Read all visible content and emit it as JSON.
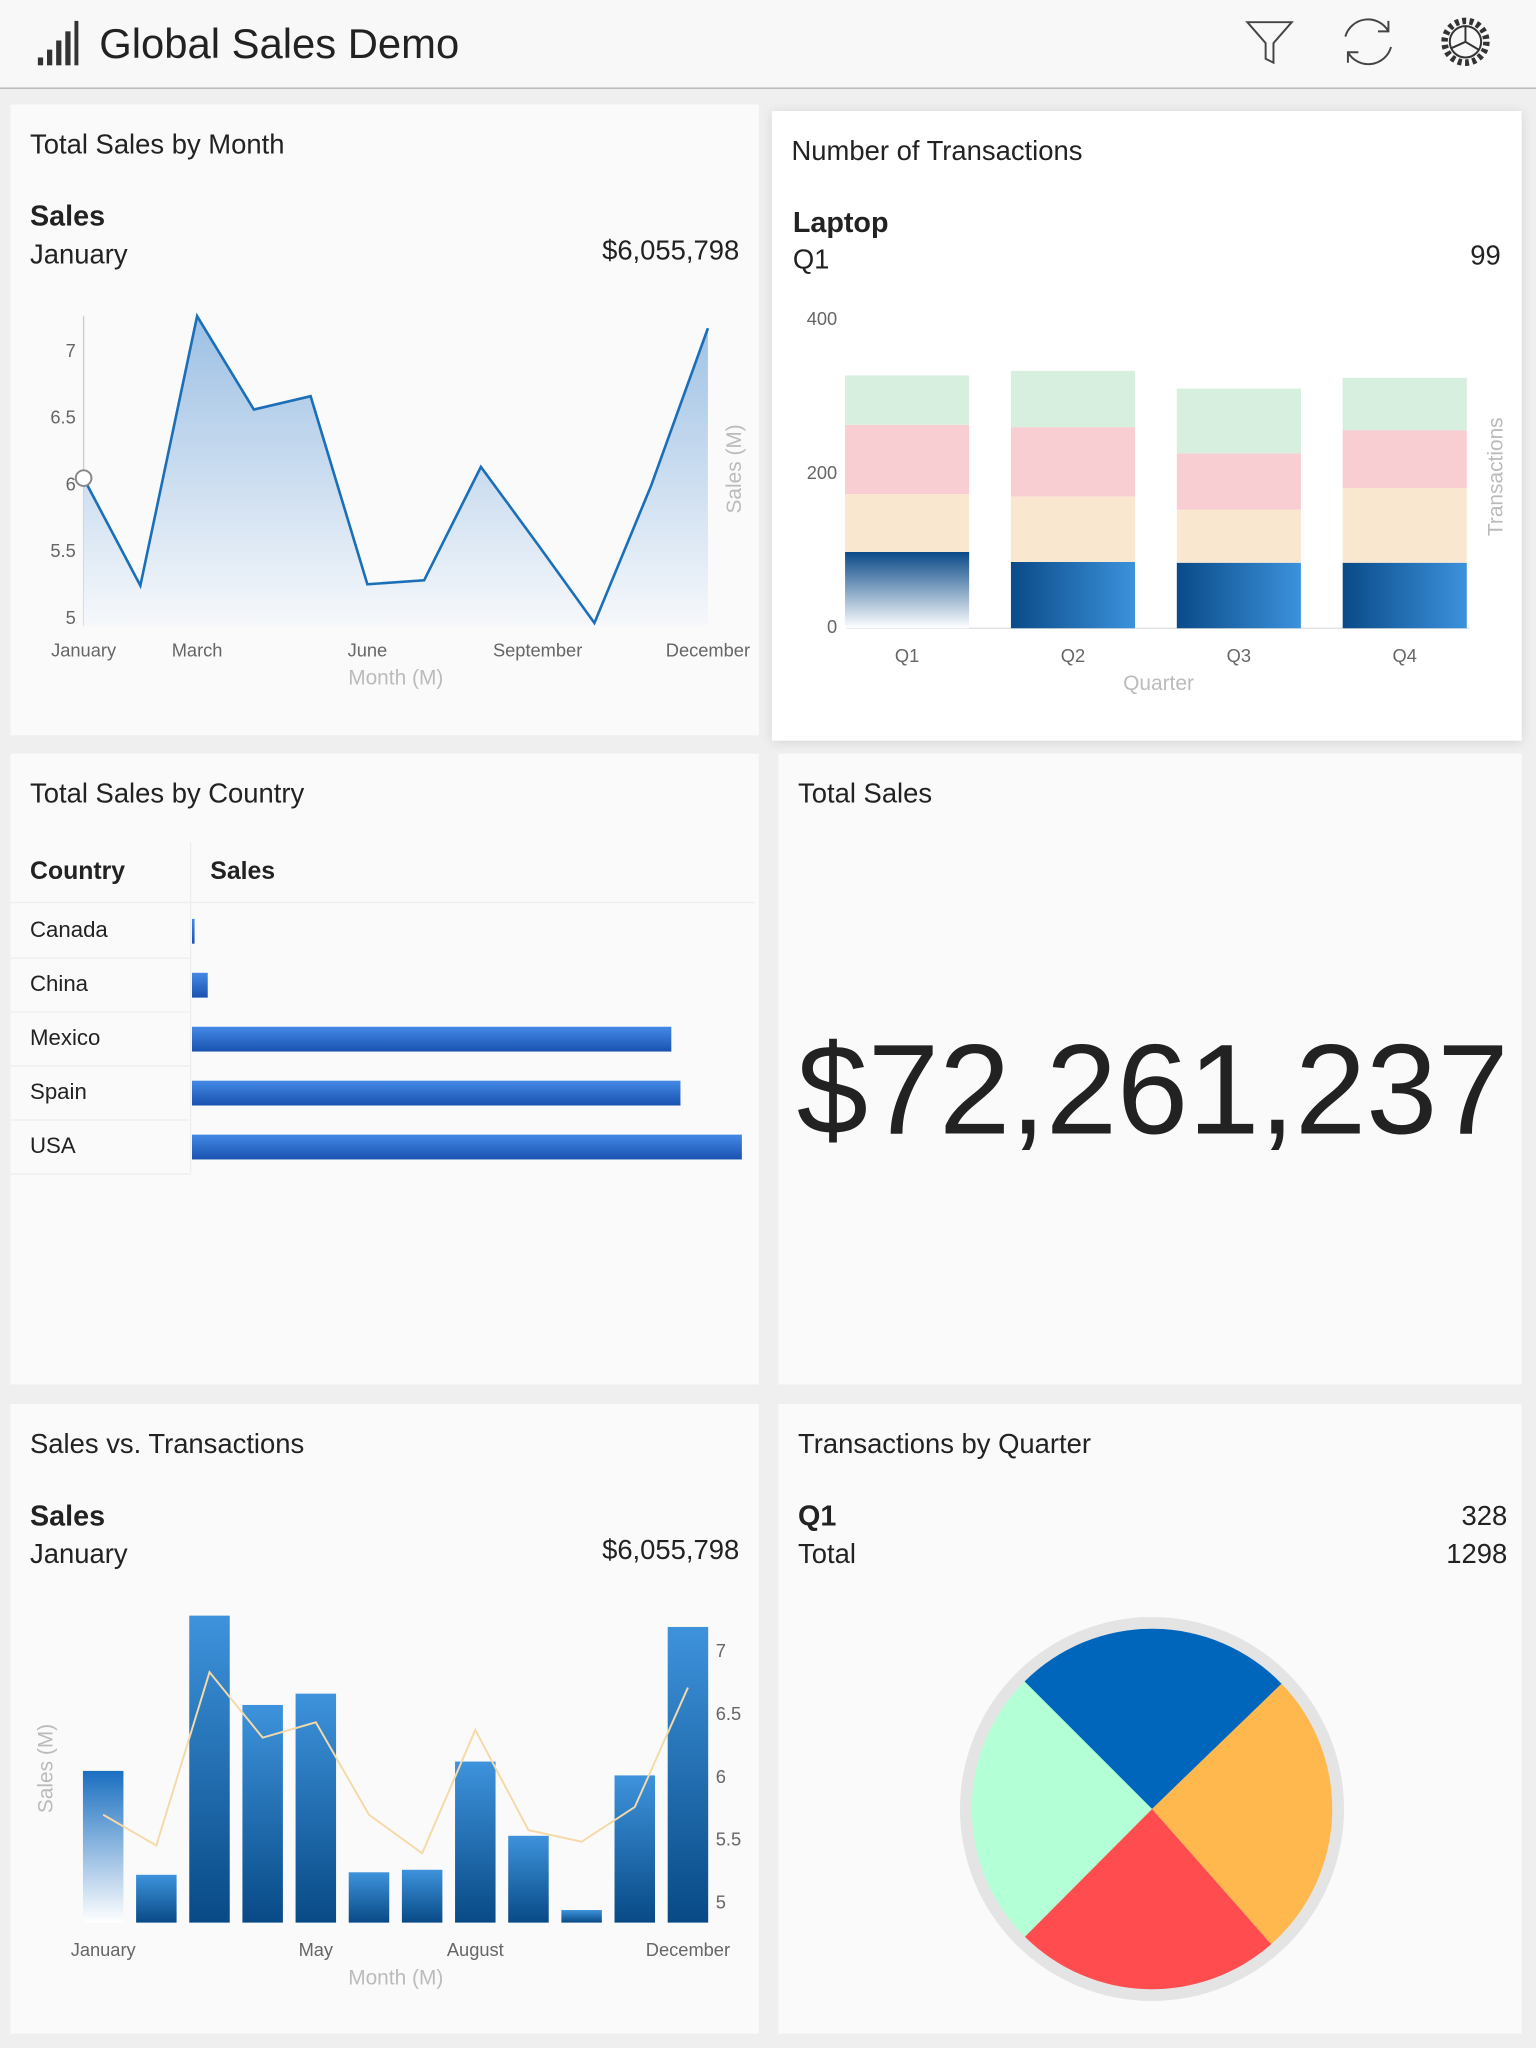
{
  "header": {
    "title": "Global Sales Demo"
  },
  "chart_data": [
    {
      "type": "line",
      "title": "Total Sales by Month",
      "xlabel": "Month (M)",
      "ylabel": "Sales (M)",
      "categories": [
        "January",
        null,
        "March",
        null,
        null,
        "June",
        null,
        null,
        "September",
        null,
        null,
        "December"
      ],
      "series": [
        {
          "name": "Sales",
          "color": "#1a6fb8",
          "values": [
            6.055798,
            5.25,
            7.27,
            6.57,
            6.67,
            5.26,
            5.29,
            6.14,
            5.56,
            4.97,
            6.0,
            7.18
          ],
          "value_labels": [
            "$6,055,798",
            null,
            null,
            null,
            null,
            null,
            null,
            null,
            null,
            null,
            null,
            null
          ]
        }
      ],
      "ylim": [
        4.95,
        7.3
      ],
      "yticks": [
        5,
        5.5,
        6,
        6.5,
        7
      ]
    },
    {
      "type": "stacked_bar",
      "title": "Number of Transactions",
      "xlabel": "Quarter",
      "ylabel": "Transactions",
      "categories": [
        "Q1",
        "Q2",
        "Q3",
        "Q4"
      ],
      "series": [
        {
          "name": "Laptop",
          "color": "#1565b0",
          "values": [
            99,
            86,
            85,
            85
          ]
        },
        {
          "name": null,
          "color": "#f9e8cf",
          "values": [
            75,
            85,
            69,
            97
          ]
        },
        {
          "name": null,
          "color": "#f9ced2",
          "values": [
            90,
            90,
            73,
            75
          ]
        },
        {
          "name": null,
          "color": "#d6efdf",
          "values": [
            64,
            73,
            84,
            68
          ]
        }
      ],
      "ylim": [
        0,
        400
      ],
      "yticks": [
        0,
        200,
        400
      ]
    },
    {
      "type": "table_bar",
      "title": "Total Sales by Country",
      "columns": [
        "Country",
        "Sales"
      ],
      "categories": [
        "Canada",
        "China",
        "Mexico",
        "Spain",
        "USA"
      ],
      "values": [
        0.12,
        0.74,
        22.55,
        22.98,
        25.87
      ],
      "color": "#2a66cc",
      "xlim": [
        0,
        25.87
      ]
    },
    {
      "type": "kpi",
      "title": "Total Sales",
      "value": "$72,261,237"
    },
    {
      "type": "combo",
      "title": "Sales vs. Transactions",
      "xlabel": "Month (M)",
      "ylabel": "Sales (M)",
      "categories": [
        "January",
        null,
        null,
        null,
        "May",
        null,
        null,
        "August",
        null,
        null,
        null,
        "December"
      ],
      "series": [
        {
          "name": "Sales",
          "kind": "bar",
          "color": "#2a7fcf",
          "values": [
            6.055798,
            5.23,
            7.29,
            6.58,
            6.67,
            5.25,
            5.27,
            6.13,
            5.54,
            4.95,
            6.02,
            7.2
          ],
          "value_labels": [
            "$6,055,798",
            null,
            null,
            null,
            null,
            null,
            null,
            null,
            null,
            null,
            null,
            null
          ]
        },
        {
          "name": null,
          "kind": "line",
          "axis": "y2",
          "color": "#f5d9a8",
          "values": [
            98,
            90,
            135,
            118,
            122,
            98,
            88,
            120,
            94,
            91,
            100,
            131
          ]
        }
      ],
      "ylim": [
        4.85,
        7.3
      ],
      "yticks": [
        5,
        5.5,
        6,
        6.5,
        7
      ],
      "y2lim": [
        70,
        150
      ]
    },
    {
      "type": "pie",
      "title": "Transactions by Quarter",
      "categories": [
        "Q1",
        null,
        null,
        null
      ],
      "values": [
        328,
        334,
        311,
        325
      ],
      "colors": [
        "#0066bb",
        "#ffb84d",
        "#ff4d4f",
        "#b3ffd6"
      ],
      "total_label": "Total",
      "total": 1298
    }
  ]
}
